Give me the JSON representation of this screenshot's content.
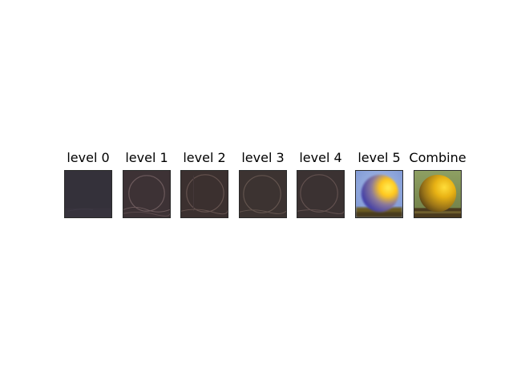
{
  "panels": [
    {
      "title": "level 0",
      "kind": "dark-residual",
      "colors": {
        "bg": "#34313a"
      }
    },
    {
      "title": "level 1",
      "kind": "edge-residual",
      "colors": {
        "bg": "#3d3235",
        "edge": "#6c5a5c"
      }
    },
    {
      "title": "level 2",
      "kind": "edge-residual",
      "colors": {
        "bg": "#3b302f",
        "edge": "#65534f"
      }
    },
    {
      "title": "level 3",
      "kind": "edge-residual",
      "colors": {
        "bg": "#3c3331",
        "edge": "#63544e"
      }
    },
    {
      "title": "level 4",
      "kind": "edge-residual",
      "colors": {
        "bg": "#3b3232",
        "edge": "#62514f"
      }
    },
    {
      "title": "level 5",
      "kind": "blurred-color",
      "colors": {
        "bg": "#8aa3d8",
        "sphere_light": "#ffe23a",
        "sphere_dark": "#4a47b8",
        "ground": "#6b5a22"
      }
    },
    {
      "title": "Combine",
      "kind": "reconstructed",
      "colors": {
        "bg": "#7f8f57",
        "sphere_light": "#f2c21a",
        "sphere_dark": "#7a5a1e",
        "ground": "#4a3a1e"
      }
    }
  ]
}
